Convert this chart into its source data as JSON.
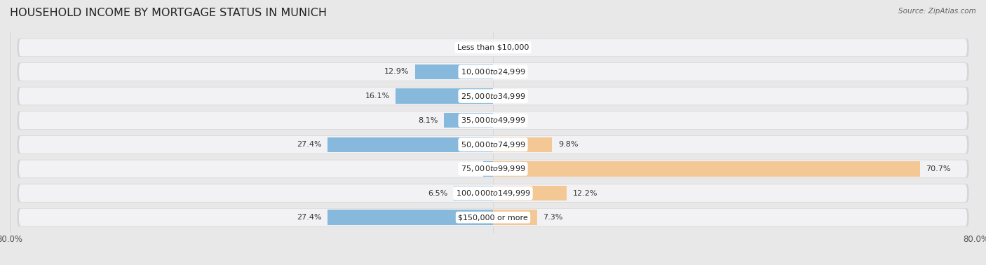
{
  "title": "HOUSEHOLD INCOME BY MORTGAGE STATUS IN MUNICH",
  "source": "Source: ZipAtlas.com",
  "categories": [
    "Less than $10,000",
    "$10,000 to $24,999",
    "$25,000 to $34,999",
    "$35,000 to $49,999",
    "$50,000 to $74,999",
    "$75,000 to $99,999",
    "$100,000 to $149,999",
    "$150,000 or more"
  ],
  "without_mortgage": [
    0.0,
    12.9,
    16.1,
    8.1,
    27.4,
    1.6,
    6.5,
    27.4
  ],
  "with_mortgage": [
    0.0,
    0.0,
    0.0,
    0.0,
    9.8,
    70.7,
    12.2,
    7.3
  ],
  "color_without": "#7ab3d9",
  "color_with": "#f5c48a",
  "xlim": [
    -80.0,
    80.0
  ],
  "background_color": "#e8e8e8",
  "row_fill": "#f2f2f5",
  "row_shadow": "#d5d5da",
  "title_fontsize": 11.5,
  "label_fontsize": 8,
  "cat_fontsize": 8,
  "tick_fontsize": 8.5
}
